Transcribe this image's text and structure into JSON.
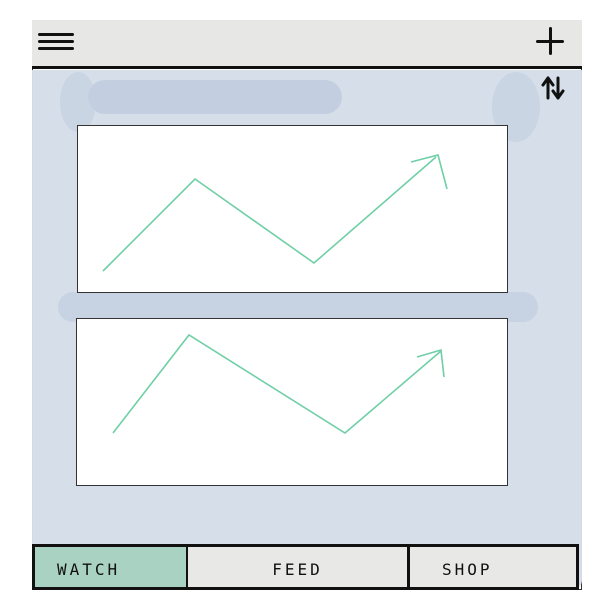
{
  "header": {
    "menu_icon": "hamburger-menu-icon",
    "add_icon": "plus-icon",
    "sort_icon": "sort-arrows-icon"
  },
  "content": {
    "cards": [
      {
        "name": "trend-card-1",
        "chart_color": "#6fcfa6"
      },
      {
        "name": "trend-card-2",
        "chart_color": "#6fcfa6"
      }
    ]
  },
  "tabs": [
    {
      "label": "WATCH",
      "active": true
    },
    {
      "label": "FEED",
      "active": false
    },
    {
      "label": "SHOP",
      "active": false
    }
  ],
  "colors": {
    "background_panel": "#d5dde9",
    "topbar": "#e7e7e5",
    "active_tab": "#a9d2c3",
    "line_accent": "#6fcfa6"
  }
}
